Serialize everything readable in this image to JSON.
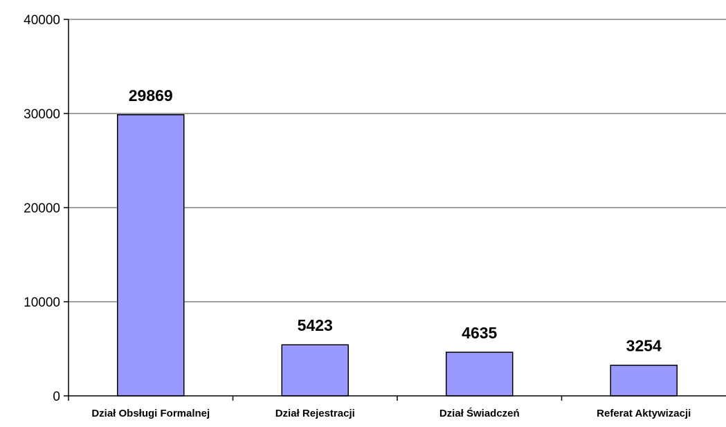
{
  "chart_data": {
    "type": "bar",
    "title": "",
    "xlabel": "",
    "ylabel": "",
    "categories": [
      "Dział Obsługi Formalnej",
      "Dział Rejestracji",
      "Dział Świadczeń",
      "Referat Aktywizacji"
    ],
    "values": [
      29869,
      5423,
      4635,
      3254
    ],
    "ylim": [
      0,
      40000
    ],
    "yticks": [
      0,
      10000,
      20000,
      30000,
      40000
    ],
    "grid": true,
    "legend": "none",
    "data_labels": true,
    "colors": {
      "bar_fill": "#9999ff",
      "bar_stroke": "#000000",
      "grid": "#808080",
      "axis": "#000000"
    }
  }
}
